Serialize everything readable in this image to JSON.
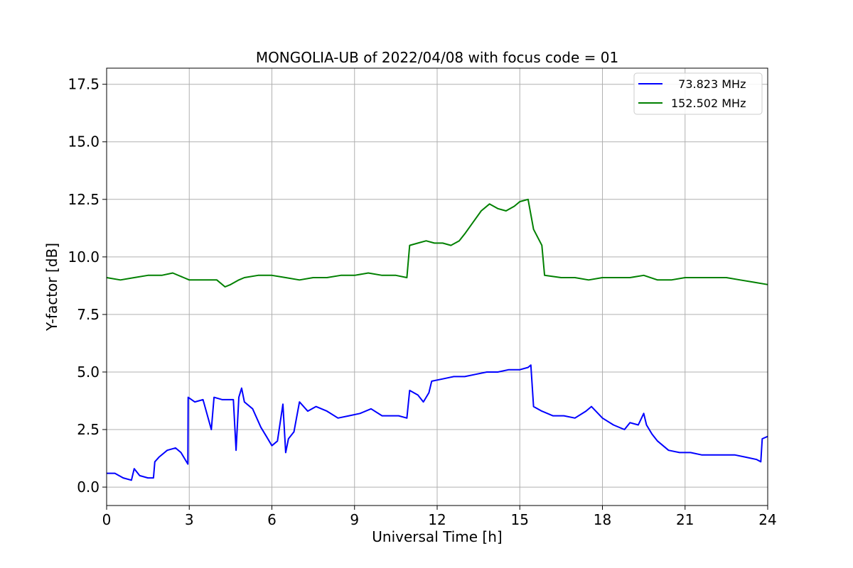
{
  "chart_data": {
    "type": "line",
    "title": "MONGOLIA-UB of 2022/04/08 with focus code = 01",
    "xlabel": "Universal Time [h]",
    "ylabel": "Y-factor [dB]",
    "xlim": [
      0,
      24
    ],
    "ylim": [
      -0.8,
      18.2
    ],
    "xticks": [
      0,
      3,
      6,
      9,
      12,
      15,
      18,
      21,
      24
    ],
    "xtick_labels": [
      "0",
      "3",
      "6",
      "9",
      "12",
      "15",
      "18",
      "21",
      "24"
    ],
    "yticks": [
      0.0,
      2.5,
      5.0,
      7.5,
      10.0,
      12.5,
      15.0,
      17.5
    ],
    "ytick_labels": [
      "0.0",
      "2.5",
      "5.0",
      "7.5",
      "10.0",
      "12.5",
      "15.0",
      "17.5"
    ],
    "grid": true,
    "legend_position": "top-right",
    "series": [
      {
        "name": "  73.823 MHz",
        "color": "#0000ff",
        "x": [
          0.0,
          0.3,
          0.6,
          0.9,
          1.0,
          1.2,
          1.5,
          1.7,
          1.75,
          1.9,
          2.2,
          2.5,
          2.7,
          2.95,
          2.96,
          3.2,
          3.5,
          3.8,
          3.9,
          4.2,
          4.6,
          4.7,
          4.8,
          4.9,
          5.0,
          5.3,
          5.6,
          5.8,
          6.0,
          6.2,
          6.4,
          6.5,
          6.6,
          6.8,
          7.0,
          7.3,
          7.6,
          8.0,
          8.4,
          8.8,
          9.2,
          9.6,
          10.0,
          10.3,
          10.6,
          10.9,
          11.0,
          11.3,
          11.5,
          11.7,
          11.8,
          12.2,
          12.6,
          13.0,
          13.4,
          13.8,
          14.2,
          14.6,
          15.0,
          15.3,
          15.4,
          15.5,
          15.8,
          16.2,
          16.6,
          17.0,
          17.4,
          17.6,
          18.0,
          18.4,
          18.8,
          19.0,
          19.3,
          19.5,
          19.6,
          19.8,
          20.0,
          20.4,
          20.8,
          21.2,
          21.6,
          22.0,
          22.4,
          22.8,
          23.2,
          23.6,
          23.75,
          23.8,
          24.0
        ],
        "values": [
          0.6,
          0.6,
          0.4,
          0.3,
          0.8,
          0.5,
          0.4,
          0.4,
          1.1,
          1.3,
          1.6,
          1.7,
          1.5,
          1.0,
          3.9,
          3.7,
          3.8,
          2.5,
          3.9,
          3.8,
          3.8,
          1.6,
          3.9,
          4.3,
          3.7,
          3.4,
          2.6,
          2.2,
          1.8,
          2.0,
          3.6,
          1.5,
          2.1,
          2.4,
          3.7,
          3.3,
          3.5,
          3.3,
          3.0,
          3.1,
          3.2,
          3.4,
          3.1,
          3.1,
          3.1,
          3.0,
          4.2,
          4.0,
          3.7,
          4.1,
          4.6,
          4.7,
          4.8,
          4.8,
          4.9,
          5.0,
          5.0,
          5.1,
          5.1,
          5.2,
          5.3,
          3.5,
          3.3,
          3.1,
          3.1,
          3.0,
          3.3,
          3.5,
          3.0,
          2.7,
          2.5,
          2.8,
          2.7,
          3.2,
          2.7,
          2.3,
          2.0,
          1.6,
          1.5,
          1.5,
          1.4,
          1.4,
          1.4,
          1.4,
          1.3,
          1.2,
          1.1,
          2.1,
          2.2
        ]
      },
      {
        "name": "152.502 MHz",
        "color": "#008000",
        "x": [
          0.0,
          0.5,
          1.0,
          1.5,
          2.0,
          2.4,
          2.8,
          3.0,
          3.5,
          4.0,
          4.3,
          4.5,
          4.8,
          5.0,
          5.5,
          6.0,
          6.5,
          7.0,
          7.5,
          8.0,
          8.5,
          9.0,
          9.5,
          10.0,
          10.5,
          10.9,
          11.0,
          11.3,
          11.6,
          11.9,
          12.2,
          12.5,
          12.8,
          13.0,
          13.3,
          13.6,
          13.9,
          14.2,
          14.5,
          14.8,
          15.0,
          15.3,
          15.5,
          15.8,
          15.9,
          16.5,
          17.0,
          17.5,
          18.0,
          18.5,
          19.0,
          19.5,
          20.0,
          20.5,
          21.0,
          21.5,
          22.0,
          22.5,
          23.0,
          23.5,
          24.0
        ],
        "values": [
          9.1,
          9.0,
          9.1,
          9.2,
          9.2,
          9.3,
          9.1,
          9.0,
          9.0,
          9.0,
          8.7,
          8.8,
          9.0,
          9.1,
          9.2,
          9.2,
          9.1,
          9.0,
          9.1,
          9.1,
          9.2,
          9.2,
          9.3,
          9.2,
          9.2,
          9.1,
          10.5,
          10.6,
          10.7,
          10.6,
          10.6,
          10.5,
          10.7,
          11.0,
          11.5,
          12.0,
          12.3,
          12.1,
          12.0,
          12.2,
          12.4,
          12.5,
          11.2,
          10.5,
          9.2,
          9.1,
          9.1,
          9.0,
          9.1,
          9.1,
          9.1,
          9.2,
          9.0,
          9.0,
          9.1,
          9.1,
          9.1,
          9.1,
          9.0,
          8.9,
          8.8
        ]
      }
    ]
  }
}
